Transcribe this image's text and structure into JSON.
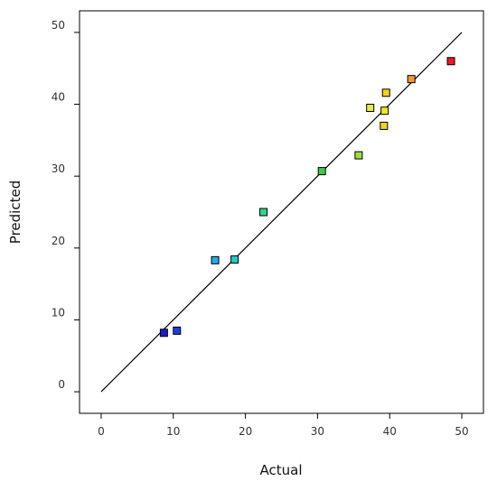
{
  "chart_data": {
    "type": "scatter",
    "title": "",
    "xlabel": "Actual",
    "ylabel": "Predicted",
    "xlim": [
      -3,
      53
    ],
    "ylim": [
      -3,
      53
    ],
    "xticks": [
      0,
      10,
      20,
      30,
      40,
      50
    ],
    "yticks": [
      0,
      10,
      20,
      30,
      40,
      50
    ],
    "grid": false,
    "legend": "none",
    "reference_line": {
      "from": [
        0,
        0
      ],
      "to": [
        50,
        50
      ],
      "color": "#000000"
    },
    "points": [
      {
        "x": 8.7,
        "y": 8.2,
        "color": "#1a1ad6"
      },
      {
        "x": 10.5,
        "y": 8.5,
        "color": "#1d3ee6"
      },
      {
        "x": 15.8,
        "y": 18.3,
        "color": "#2aa8e6"
      },
      {
        "x": 18.5,
        "y": 18.4,
        "color": "#25c8c2"
      },
      {
        "x": 22.5,
        "y": 25.0,
        "color": "#2bd88a"
      },
      {
        "x": 30.6,
        "y": 30.7,
        "color": "#3ccc3c"
      },
      {
        "x": 35.7,
        "y": 32.9,
        "color": "#9ee03a"
      },
      {
        "x": 37.3,
        "y": 39.5,
        "color": "#e6ee3a"
      },
      {
        "x": 39.2,
        "y": 37.0,
        "color": "#f2d21e"
      },
      {
        "x": 39.3,
        "y": 39.1,
        "color": "#f2e52a"
      },
      {
        "x": 39.5,
        "y": 41.6,
        "color": "#f2d21e"
      },
      {
        "x": 43.0,
        "y": 43.5,
        "color": "#f59a2a"
      },
      {
        "x": 48.5,
        "y": 46.0,
        "color": "#e61e1e"
      }
    ]
  }
}
